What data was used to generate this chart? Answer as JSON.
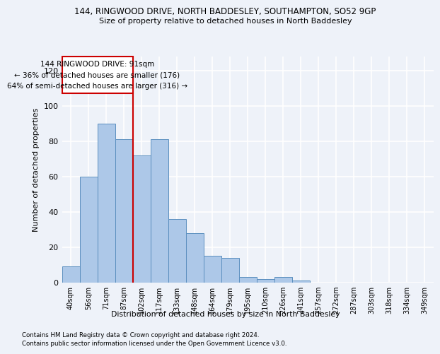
{
  "title1": "144, RINGWOOD DRIVE, NORTH BADDESLEY, SOUTHAMPTON, SO52 9GP",
  "title2": "Size of property relative to detached houses in North Baddesley",
  "xlabel": "Distribution of detached houses by size in North Baddesley",
  "ylabel": "Number of detached properties",
  "categories": [
    "40sqm",
    "56sqm",
    "71sqm",
    "87sqm",
    "102sqm",
    "117sqm",
    "133sqm",
    "148sqm",
    "164sqm",
    "179sqm",
    "195sqm",
    "210sqm",
    "226sqm",
    "241sqm",
    "257sqm",
    "272sqm",
    "287sqm",
    "303sqm",
    "318sqm",
    "334sqm",
    "349sqm"
  ],
  "bar_heights": [
    9,
    60,
    90,
    81,
    72,
    81,
    36,
    28,
    15,
    14,
    3,
    2,
    3,
    1,
    0,
    0,
    0,
    0,
    0,
    0,
    0
  ],
  "bar_color": "#adc8e8",
  "bar_edge_color": "#5b8fbf",
  "vline_x": 3.5,
  "vline_color": "#cc0000",
  "ylim": [
    0,
    128
  ],
  "yticks": [
    0,
    20,
    40,
    60,
    80,
    100,
    120
  ],
  "annotation_box_text": "144 RINGWOOD DRIVE: 91sqm\n← 36% of detached houses are smaller (176)\n64% of semi-detached houses are larger (316) →",
  "footnote1": "Contains HM Land Registry data © Crown copyright and database right 2024.",
  "footnote2": "Contains public sector information licensed under the Open Government Licence v3.0.",
  "bg_color": "#eef2f9",
  "grid_color": "#ffffff"
}
